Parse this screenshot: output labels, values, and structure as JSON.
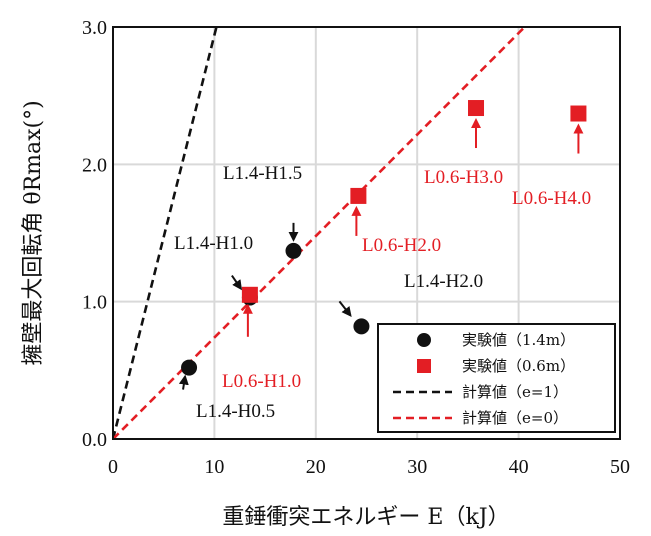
{
  "chart_data": {
    "type": "scatter",
    "title": "",
    "xlabel": "重錘衝突エネルギー E（kJ）",
    "ylabel": "擁壁最大回転角 θRmax(°)",
    "xlim": [
      0,
      50
    ],
    "ylim": [
      0,
      3
    ],
    "xticks": [
      "0",
      "10",
      "20",
      "30",
      "40",
      "50"
    ],
    "yticks": [
      "0.0",
      "1.0",
      "2.0",
      "3.0"
    ],
    "grid": true,
    "legend_position": "bottom-right",
    "colors": {
      "black": "#111111",
      "red": "#e31e24",
      "grid": "#d9d9d9"
    },
    "series": [
      {
        "name": "実験値（1.4m）",
        "marker": "circle",
        "color": "#111111",
        "points": [
          {
            "x": 7.5,
            "y": 0.52
          },
          {
            "x": 13.5,
            "y": 1.03
          },
          {
            "x": 17.8,
            "y": 1.37
          },
          {
            "x": 24.5,
            "y": 0.82
          }
        ]
      },
      {
        "name": "実験値（0.6m）",
        "marker": "square",
        "color": "#e31e24",
        "points": [
          {
            "x": 13.5,
            "y": 1.05
          },
          {
            "x": 24.2,
            "y": 1.77
          },
          {
            "x": 35.8,
            "y": 2.41
          },
          {
            "x": 45.9,
            "y": 2.37
          }
        ]
      },
      {
        "name": "計算値（e=1）",
        "line": "dashed",
        "color": "#111111",
        "points": [
          {
            "x": 0,
            "y": 0
          },
          {
            "x": 10.2,
            "y": 3.0
          }
        ]
      },
      {
        "name": "計算値（e=0）",
        "line": "dashed",
        "color": "#e31e24",
        "points": [
          {
            "x": 0,
            "y": 0
          },
          {
            "x": 40.6,
            "y": 3.0
          }
        ]
      }
    ],
    "annotations": [
      {
        "text": "L1.4-H0.5",
        "color": "#111111",
        "point": {
          "x": 7.5,
          "y": 0.52
        }
      },
      {
        "text": "L1.4-H1.0",
        "color": "#111111",
        "point": {
          "x": 13.5,
          "y": 1.03
        }
      },
      {
        "text": "L1.4-H1.5",
        "color": "#111111",
        "point": {
          "x": 17.8,
          "y": 1.37
        }
      },
      {
        "text": "L1.4-H2.0",
        "color": "#111111",
        "point": {
          "x": 24.5,
          "y": 0.82
        }
      },
      {
        "text": "L0.6-H1.0",
        "color": "#e31e24",
        "point": {
          "x": 13.5,
          "y": 1.05
        }
      },
      {
        "text": "L0.6-H2.0",
        "color": "#e31e24",
        "point": {
          "x": 24.2,
          "y": 1.77
        }
      },
      {
        "text": "L0.6-H3.0",
        "color": "#e31e24",
        "point": {
          "x": 35.8,
          "y": 2.41
        }
      },
      {
        "text": "L0.6-H4.0",
        "color": "#e31e24",
        "point": {
          "x": 45.9,
          "y": 2.37
        }
      }
    ]
  }
}
